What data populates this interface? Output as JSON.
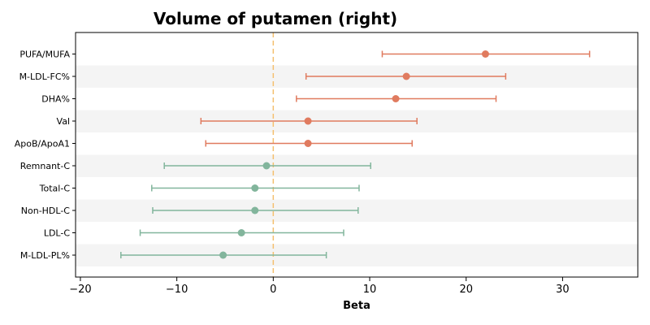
{
  "chart_data": {
    "type": "forest",
    "title": "Volume of putamen (right)",
    "xlabel": "Beta",
    "ylabel": "",
    "xlim": [
      -20.5,
      37.8
    ],
    "xticks": [
      -20,
      -10,
      0,
      10,
      20,
      30
    ],
    "xtick_labels": [
      "−20",
      "−10",
      "0",
      "10",
      "20",
      "30"
    ],
    "reference_line": {
      "x": 0,
      "color": "#f5c06f",
      "style": "dashed"
    },
    "grid": false,
    "row_banding": true,
    "items": [
      {
        "label": "PUFA/MUFA",
        "beta": 22.0,
        "ci_low": 11.3,
        "ci_high": 32.8,
        "group": "positive"
      },
      {
        "label": "M-LDL-FC%",
        "beta": 13.8,
        "ci_low": 3.4,
        "ci_high": 24.1,
        "group": "positive"
      },
      {
        "label": "DHA%",
        "beta": 12.7,
        "ci_low": 2.4,
        "ci_high": 23.1,
        "group": "positive"
      },
      {
        "label": "Val",
        "beta": 3.6,
        "ci_low": -7.5,
        "ci_high": 14.9,
        "group": "positive"
      },
      {
        "label": "ApoB/ApoA1",
        "beta": 3.6,
        "ci_low": -7.0,
        "ci_high": 14.4,
        "group": "positive"
      },
      {
        "label": "Remnant-C",
        "beta": -0.7,
        "ci_low": -11.3,
        "ci_high": 10.1,
        "group": "negative"
      },
      {
        "label": "Total-C",
        "beta": -1.9,
        "ci_low": -12.6,
        "ci_high": 8.9,
        "group": "negative"
      },
      {
        "label": "Non-HDL-C",
        "beta": -1.9,
        "ci_low": -12.5,
        "ci_high": 8.8,
        "group": "negative"
      },
      {
        "label": "LDL-C",
        "beta": -3.3,
        "ci_low": -13.8,
        "ci_high": 7.3,
        "group": "negative"
      },
      {
        "label": "M-LDL-PL%",
        "beta": -5.2,
        "ci_low": -15.8,
        "ci_high": 5.5,
        "group": "negative"
      }
    ],
    "colors": {
      "positive": "#e07b5f",
      "negative": "#82b59c",
      "band": "#f4f4f4",
      "axis": "#000000"
    }
  }
}
